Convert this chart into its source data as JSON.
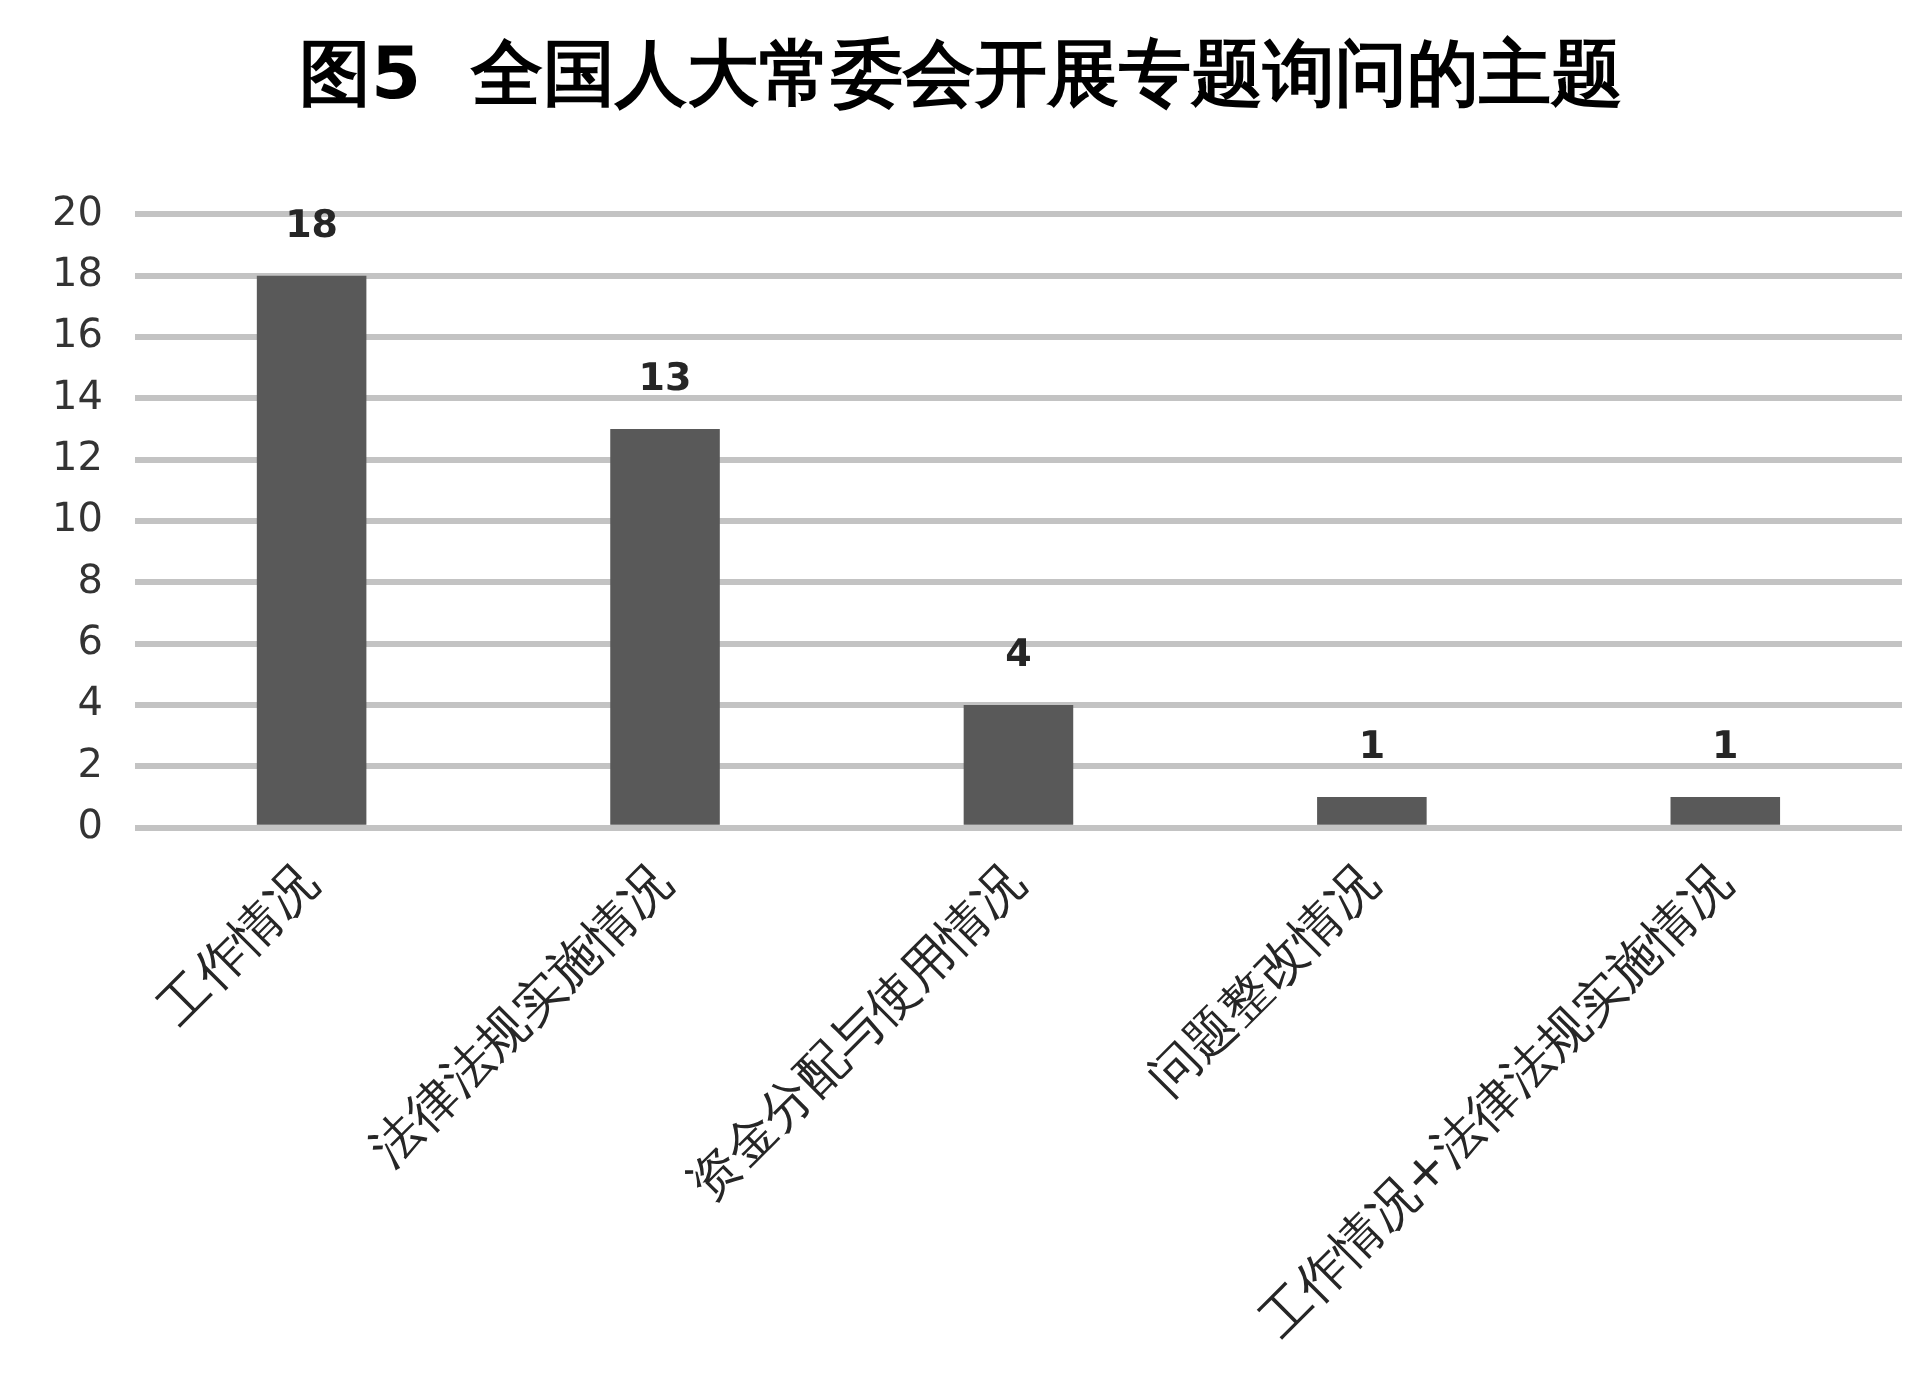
{
  "chart_data": {
    "type": "bar",
    "title": "图5  全国人大常委会开展专题询问的主题",
    "categories": [
      "工作情况",
      "法律法规实施情况",
      "资金分配与使用情况",
      "问题整改情况",
      "工作情况+法律法规实施情况"
    ],
    "values": [
      18,
      13,
      4,
      1,
      1
    ],
    "color": "#595959",
    "ylim": [
      0,
      20
    ],
    "yticks": [
      0,
      2,
      4,
      6,
      8,
      10,
      12,
      14,
      16,
      18,
      20
    ],
    "grid": "y",
    "data_labels": true
  }
}
